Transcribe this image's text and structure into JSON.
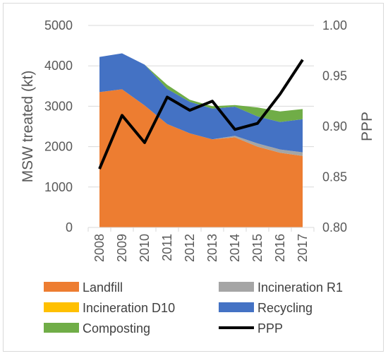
{
  "chart_data": {
    "type": "area",
    "categories": [
      "2008",
      "2009",
      "2010",
      "2011",
      "2012",
      "2013",
      "2014",
      "2015",
      "2016",
      "2017"
    ],
    "stack_order": [
      "Landfill",
      "Incineration R1",
      "Incineration D10",
      "Recycling",
      "Composting"
    ],
    "series": [
      {
        "name": "Landfill",
        "kind": "area",
        "axis": "left",
        "color": "#ED7D31",
        "values": [
          3350,
          3420,
          3020,
          2560,
          2330,
          2180,
          2230,
          2000,
          1850,
          1770
        ]
      },
      {
        "name": "Incineration R1",
        "kind": "area",
        "axis": "left",
        "color": "#A5A5A5",
        "values": [
          0,
          0,
          0,
          0,
          0,
          0,
          40,
          80,
          80,
          90
        ]
      },
      {
        "name": "Incineration D10",
        "kind": "area",
        "axis": "left",
        "color": "#FFC000",
        "values": [
          0,
          0,
          0,
          0,
          0,
          0,
          0,
          0,
          0,
          0
        ]
      },
      {
        "name": "Recycling",
        "kind": "area",
        "axis": "left",
        "color": "#4472C4",
        "values": [
          870,
          890,
          1010,
          870,
          780,
          760,
          720,
          670,
          680,
          820
        ]
      },
      {
        "name": "Composting",
        "kind": "area",
        "axis": "left",
        "color": "#70AD47",
        "values": [
          0,
          0,
          0,
          100,
          50,
          60,
          40,
          220,
          260,
          250
        ]
      },
      {
        "name": "PPP",
        "kind": "line",
        "axis": "right",
        "color": "#000000",
        "values": [
          0.858,
          0.911,
          0.884,
          0.929,
          0.916,
          0.925,
          0.897,
          0.903,
          0.932,
          0.966
        ]
      }
    ],
    "y_left": {
      "label": "MSW treated (kt)",
      "min": 0,
      "max": 5000,
      "ticks": [
        0,
        1000,
        2000,
        3000,
        4000,
        5000
      ]
    },
    "y_right": {
      "label": "PPP",
      "min": 0.8,
      "max": 1.0,
      "ticks": [
        "0.80",
        "0.85",
        "0.90",
        "0.95",
        "1.00"
      ]
    },
    "grid": true,
    "legend_position": "bottom",
    "legend_order": [
      "Landfill",
      "Incineration R1",
      "Incineration D10",
      "Recycling",
      "Composting",
      "PPP"
    ]
  }
}
